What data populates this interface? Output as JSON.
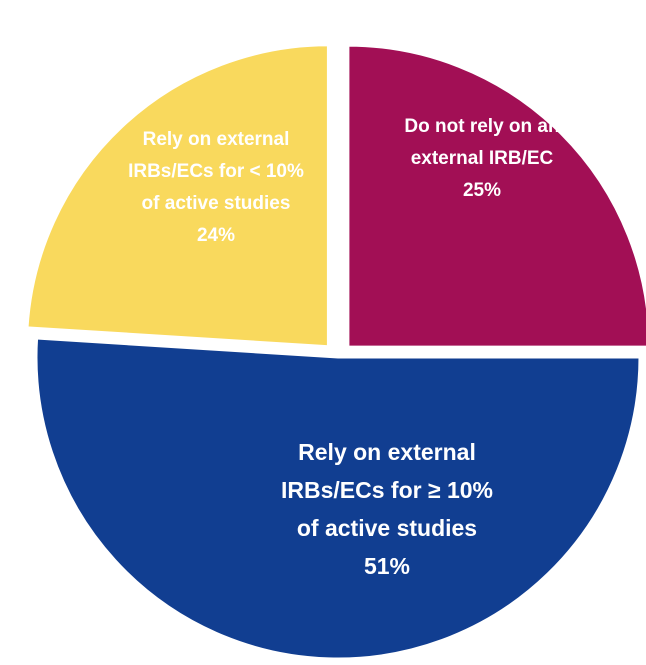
{
  "chart_data": {
    "type": "pie",
    "title": "",
    "legend": "none",
    "slices": [
      {
        "label_lines": [
          "Do not rely on an",
          "external IRB/EC",
          "25%"
        ],
        "label": "Do not rely on an external IRB/EC",
        "value": 25,
        "color": "#A20F55"
      },
      {
        "label_lines": [
          "Rely on external",
          "IRBs/ECs for ≥ 10%",
          "of active studies",
          "51%"
        ],
        "label": "Rely on external IRBs/ECs for ≥ 10% of active studies",
        "value": 51,
        "color": "#113E91"
      },
      {
        "label_lines": [
          "Rely on external",
          "IRBs/ECs for < 10%",
          "of active studies",
          "24%"
        ],
        "label": "Rely on external IRBs/ECs for < 10% of active studies",
        "value": 24,
        "color": "#F9D95D"
      }
    ]
  }
}
